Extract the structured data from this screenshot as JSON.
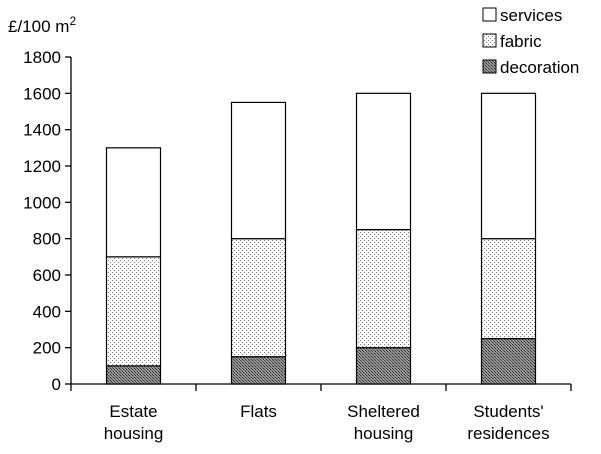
{
  "chart_data": {
    "type": "bar",
    "stacked": true,
    "categories": [
      [
        "Estate",
        "housing"
      ],
      [
        "Flats"
      ],
      [
        "Sheltered",
        "housing"
      ],
      [
        "Students'",
        "residences"
      ]
    ],
    "series": [
      {
        "name": "decoration",
        "values": [
          100,
          150,
          200,
          250
        ],
        "pattern": "dense-dots"
      },
      {
        "name": "fabric",
        "values": [
          600,
          650,
          650,
          550
        ],
        "pattern": "light-dots"
      },
      {
        "name": "services",
        "values": [
          600,
          750,
          750,
          800
        ],
        "pattern": "white"
      }
    ],
    "ylim": [
      0,
      1800
    ],
    "yticks": [
      0,
      200,
      400,
      600,
      800,
      1000,
      1200,
      1400,
      1600,
      1800
    ],
    "ylabel_unit": "£/100 m",
    "ylabel_superscript": "2",
    "legend_order": [
      "services",
      "fabric",
      "decoration"
    ],
    "legend_position": "top-right",
    "grid": false
  }
}
